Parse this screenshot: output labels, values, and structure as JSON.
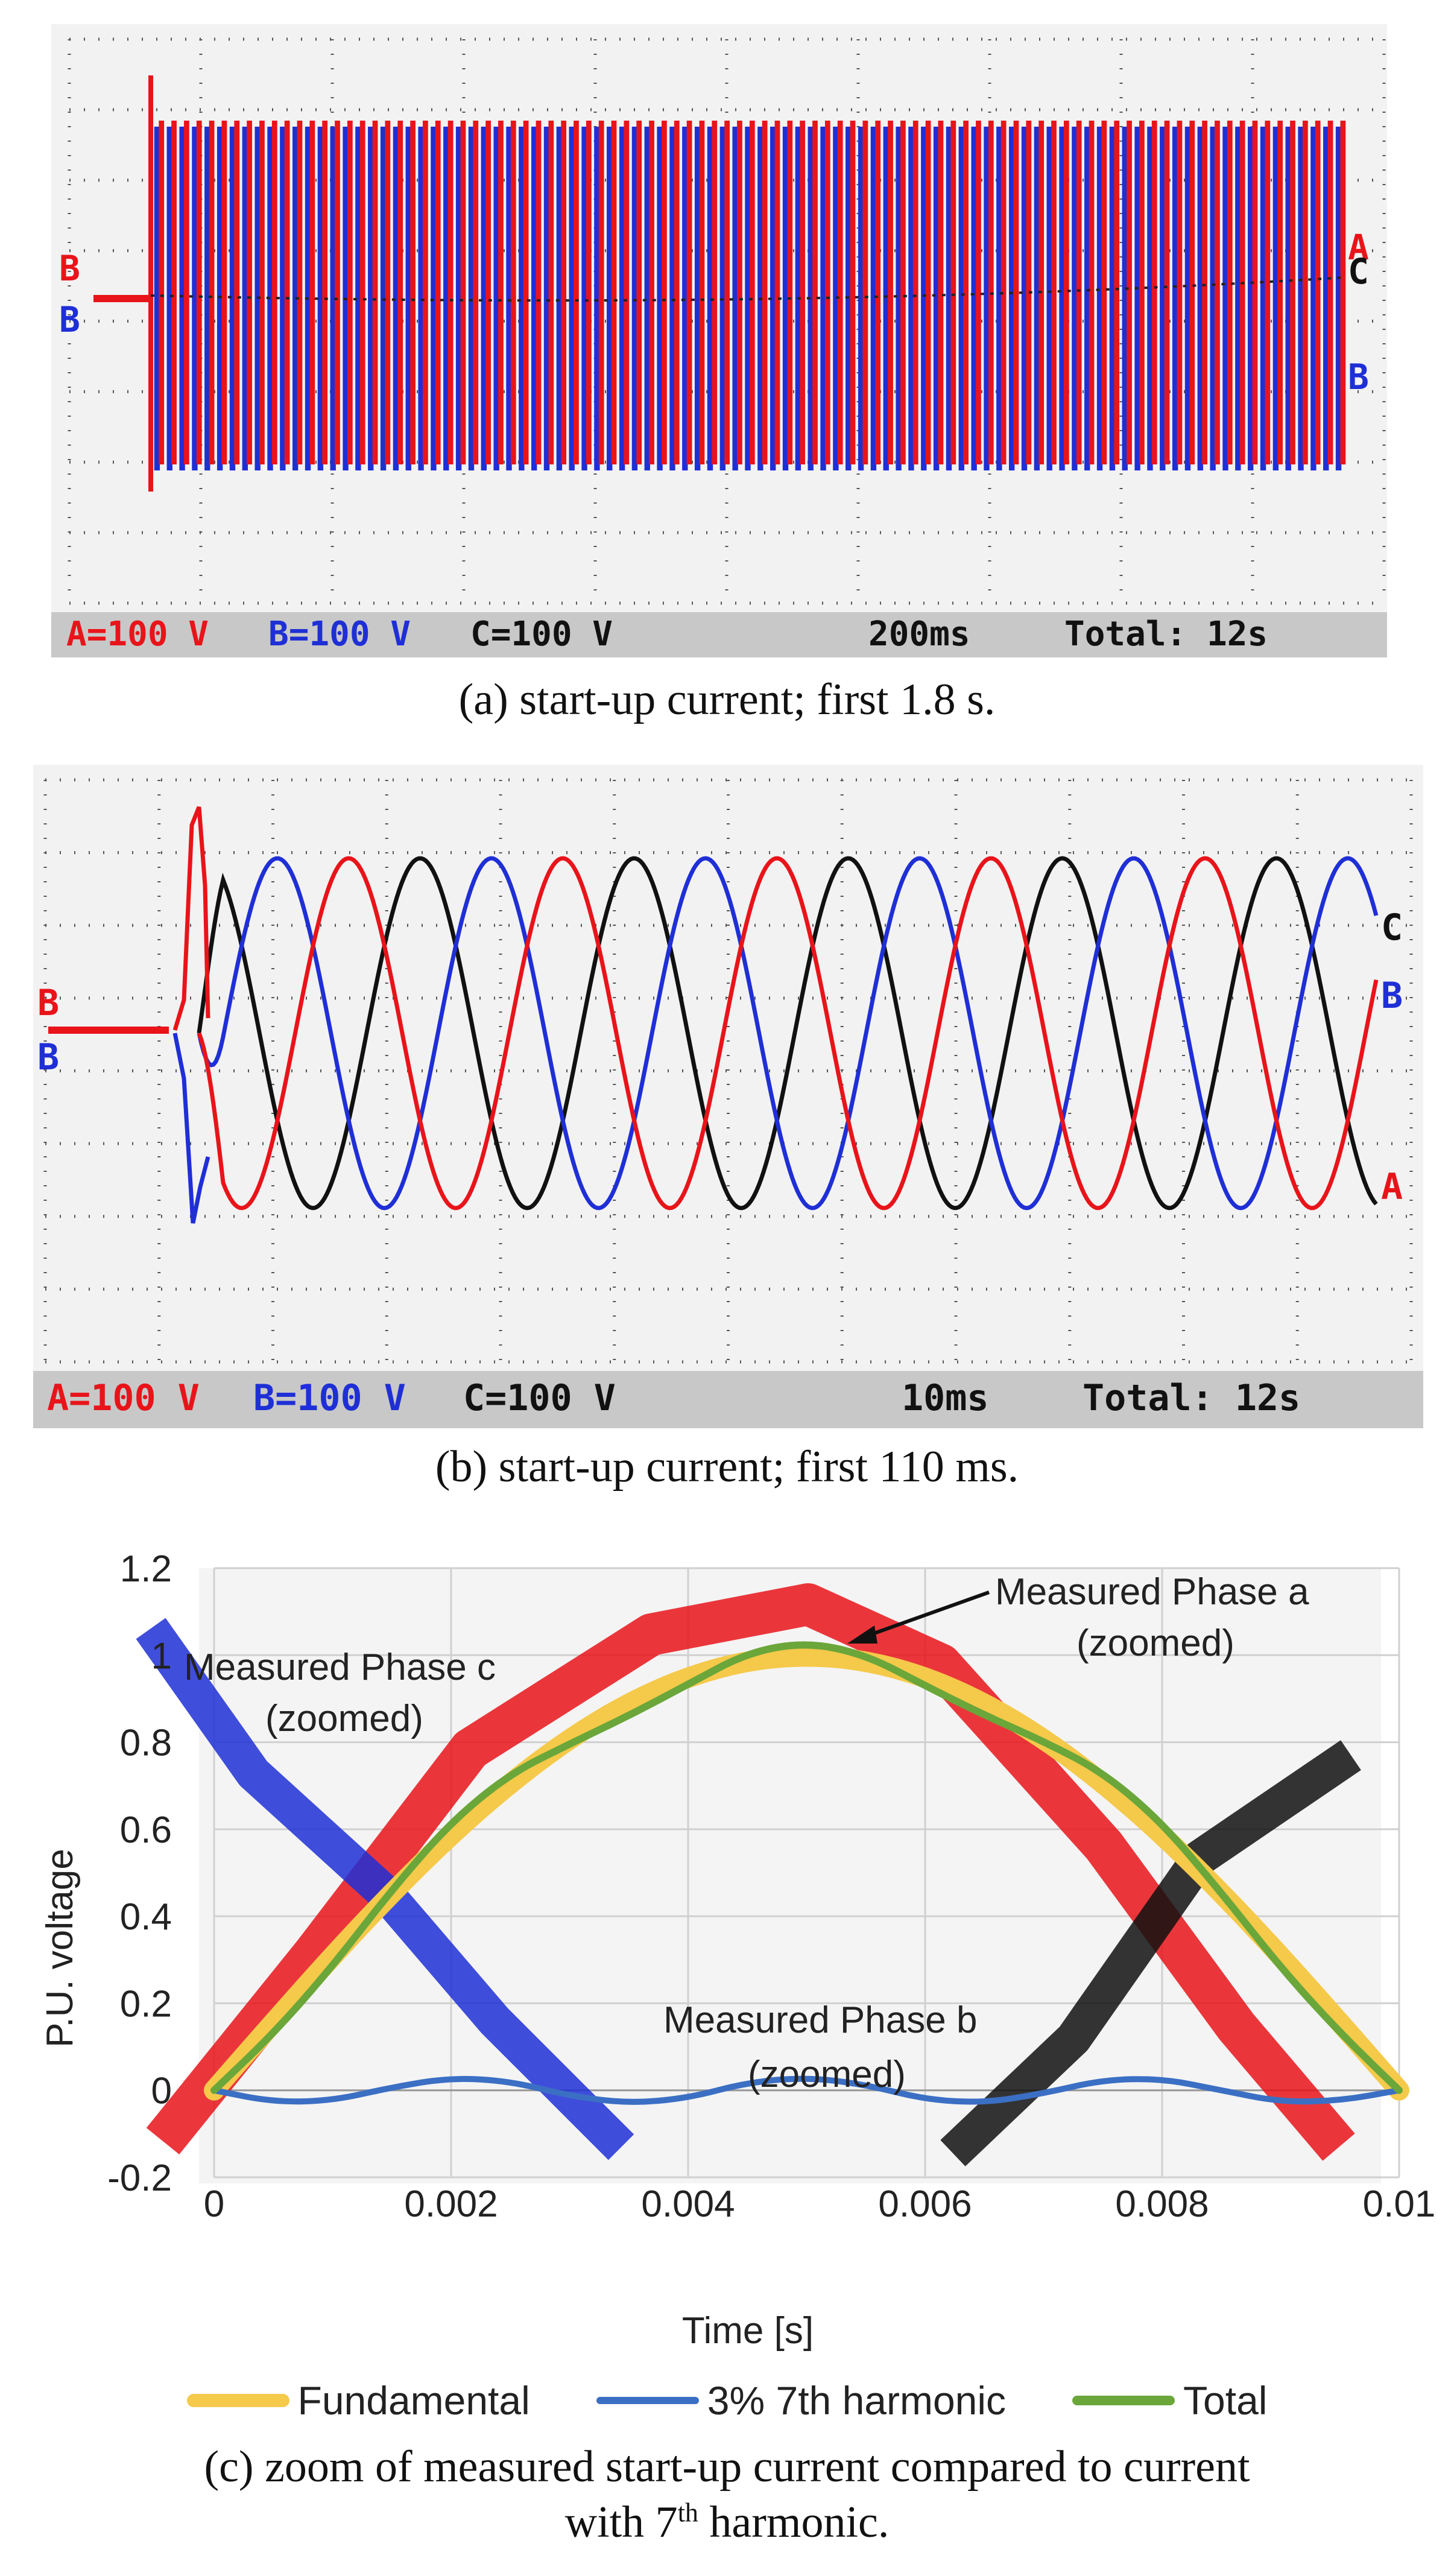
{
  "colors": {
    "phase_a": "#e8141a",
    "phase_b": "#1f2fd6",
    "phase_c": "#111111",
    "fundamental": "#f5c94a",
    "harmonic": "#3b6fc4",
    "total": "#6aa639"
  },
  "panel_a": {
    "status": {
      "a_scale": "A=100 V",
      "b_scale": "B=100 V",
      "c_scale": "C=100 V",
      "timebase": "200ms",
      "total": "Total: 12s"
    },
    "left_labels": [
      "B",
      "B"
    ],
    "right_labels": [
      "A",
      "C",
      "B"
    ],
    "caption": "(a) start-up current; first 1.8 s."
  },
  "panel_b": {
    "status": {
      "a_scale": "A=100 V",
      "b_scale": "B=100 V",
      "c_scale": "C=100 V",
      "timebase": "10ms",
      "total": "Total: 12s"
    },
    "left_labels": [
      "B",
      "B"
    ],
    "right_labels": [
      "C",
      "B",
      "A"
    ],
    "caption": "(b) start-up current; first 110 ms."
  },
  "chart_data": {
    "type": "line",
    "xlabel": "Time [s]",
    "ylabel": "P.U. voltage",
    "xlim": [
      0,
      0.01
    ],
    "ylim": [
      -0.2,
      1.2
    ],
    "x_ticks": [
      "0",
      "0.002",
      "0.004",
      "0.006",
      "0.008",
      "0.01"
    ],
    "y_ticks": [
      "-0.2",
      "0",
      "0.2",
      "0.4",
      "0.6",
      "0.8",
      "1",
      "1.2"
    ],
    "grid": true,
    "series": [
      {
        "name": "Fundamental",
        "x": [
          0,
          0.0005,
          0.001,
          0.0015,
          0.002,
          0.0025,
          0.003,
          0.0035,
          0.004,
          0.0045,
          0.005,
          0.0055,
          0.006,
          0.0065,
          0.007,
          0.0075,
          0.008,
          0.0085,
          0.009,
          0.0095,
          0.01
        ],
        "y": [
          0,
          0.156,
          0.309,
          0.454,
          0.588,
          0.707,
          0.809,
          0.891,
          0.951,
          0.988,
          1.0,
          0.988,
          0.951,
          0.891,
          0.809,
          0.707,
          0.588,
          0.454,
          0.309,
          0.156,
          0
        ]
      },
      {
        "name": "3% 7th harmonic",
        "x": [
          0,
          0.0005,
          0.001,
          0.0015,
          0.002,
          0.0025,
          0.003,
          0.0035,
          0.004,
          0.0045,
          0.005,
          0.0055,
          0.006,
          0.0065,
          0.007,
          0.0075,
          0.008,
          0.0085,
          0.009,
          0.0095,
          0.01
        ],
        "y": [
          0,
          -0.027,
          -0.024,
          0.007,
          0.029,
          0.021,
          -0.013,
          -0.03,
          -0.018,
          0.018,
          0.03,
          0.013,
          -0.021,
          -0.029,
          -0.007,
          0.024,
          0.027,
          0.0,
          -0.027,
          -0.024,
          0
        ]
      },
      {
        "name": "Total",
        "x": [
          0,
          0.0005,
          0.001,
          0.0015,
          0.002,
          0.0025,
          0.003,
          0.0035,
          0.004,
          0.0045,
          0.005,
          0.0055,
          0.006,
          0.0065,
          0.007,
          0.0075,
          0.008,
          0.0085,
          0.009,
          0.0095,
          0.01
        ],
        "y": [
          0,
          0.13,
          0.285,
          0.461,
          0.617,
          0.728,
          0.796,
          0.861,
          0.933,
          1.006,
          1.03,
          1.001,
          0.93,
          0.862,
          0.802,
          0.731,
          0.615,
          0.454,
          0.282,
          0.132,
          0
        ]
      }
    ],
    "annotations": [
      {
        "text": "Measured Phase a",
        "line2": "(zoomed)"
      },
      {
        "text": "Measured Phase c",
        "line2": "(zoomed)"
      },
      {
        "text": "Measured Phase b",
        "line2": "(zoomed)"
      }
    ],
    "legend": [
      "Fundamental",
      "3% 7th harmonic",
      "Total"
    ],
    "legend_placement": "bottom"
  },
  "panel_c": {
    "caption_line1": "(c) zoom of measured start-up current compared to current",
    "caption_line2_pre": "with 7",
    "caption_line2_sup": "th",
    "caption_line2_post": " harmonic."
  }
}
